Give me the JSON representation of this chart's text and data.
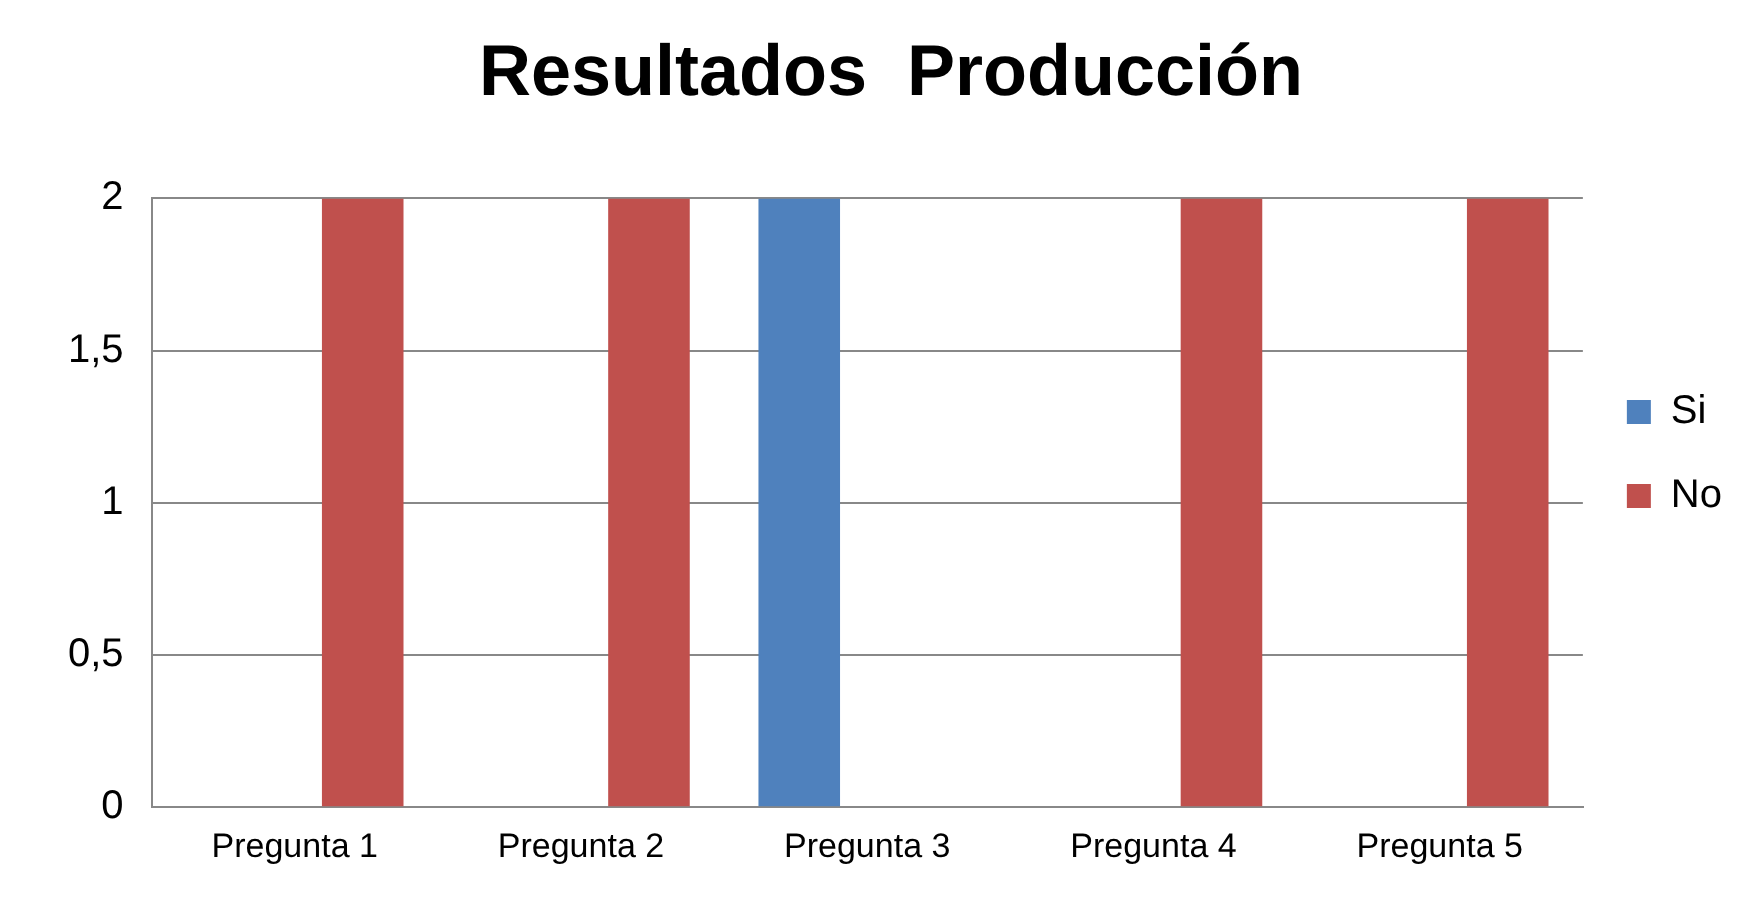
{
  "chart_data": {
    "type": "bar",
    "title": "Resultados  Producción",
    "categories": [
      "Pregunta 1",
      "Pregunta 2",
      "Pregunta 3",
      "Pregunta 4",
      "Pregunta 5"
    ],
    "series": [
      {
        "name": "Si",
        "color": "#4f81bd",
        "values": [
          0,
          0,
          2,
          0,
          0
        ]
      },
      {
        "name": "No",
        "color": "#c0504d",
        "values": [
          2,
          2,
          0,
          2,
          2
        ]
      }
    ],
    "ylim": [
      0,
      2
    ],
    "yticks": [
      0,
      {
        "value": 0.5,
        "label": "0,5"
      },
      1,
      {
        "value": 1.5,
        "label": "1,5"
      },
      2
    ],
    "grid": "y",
    "legend": "right"
  }
}
